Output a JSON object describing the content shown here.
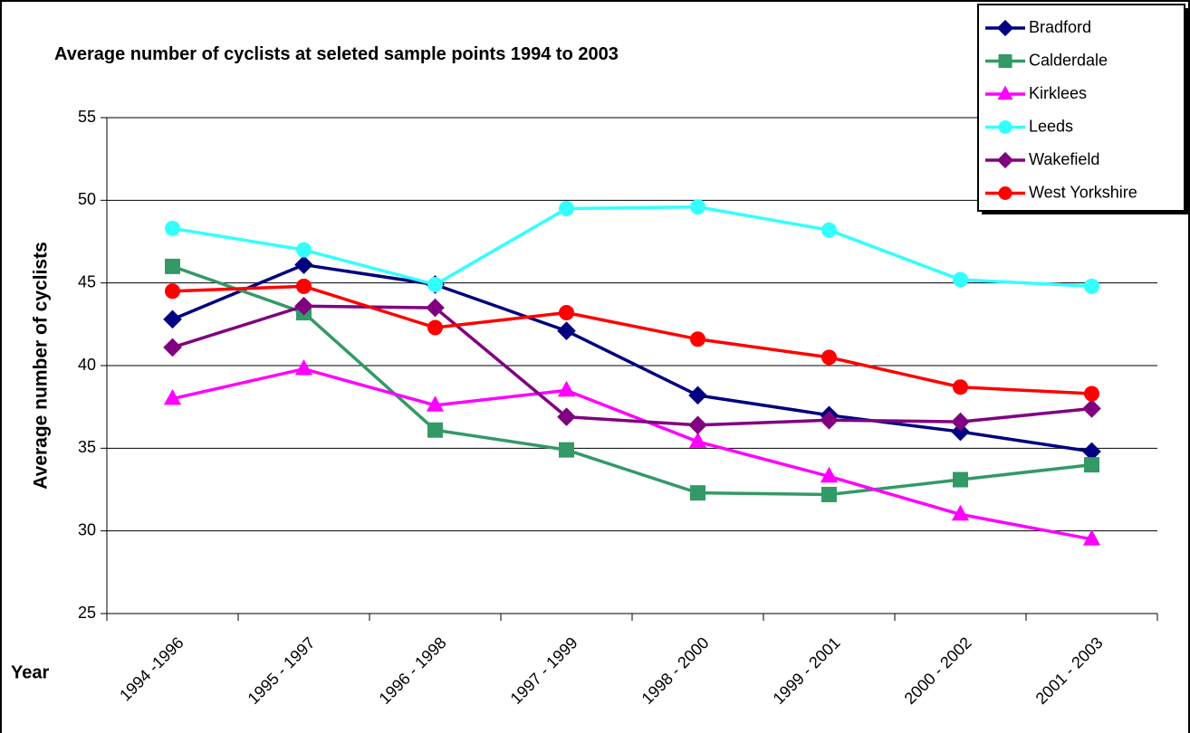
{
  "chart_data": {
    "type": "line",
    "title": "Average number of cyclists at seleted sample points 1994 to 2003",
    "y_label": "Average number of cyclists",
    "x_label": "Year",
    "categories": [
      "1994 -1996",
      "1995 - 1997",
      "1996 - 1998",
      "1997 - 1999",
      "1998 - 2000",
      "1999 - 2001",
      "2000 - 2002",
      "2001 - 2003"
    ],
    "series": [
      {
        "name": "Bradford",
        "color": "#000080",
        "marker": "diamond",
        "values": [
          42.8,
          46.1,
          44.9,
          42.1,
          38.2,
          37.0,
          36.0,
          34.8
        ]
      },
      {
        "name": "Calderdale",
        "color": "#339966",
        "marker": "square",
        "values": [
          46.0,
          43.2,
          36.1,
          34.9,
          32.3,
          32.2,
          33.1,
          34.0
        ]
      },
      {
        "name": "Kirklees",
        "color": "#ff00ff",
        "marker": "triangle",
        "values": [
          38.0,
          39.8,
          37.6,
          38.5,
          35.4,
          33.3,
          31.0,
          29.5
        ]
      },
      {
        "name": "Leeds",
        "color": "#33ffff",
        "marker": "circle",
        "values": [
          48.3,
          47.0,
          44.9,
          49.5,
          49.6,
          48.2,
          45.2,
          44.8
        ]
      },
      {
        "name": "Wakefield",
        "color": "#800080",
        "marker": "diamond",
        "values": [
          41.1,
          43.6,
          43.5,
          36.9,
          36.4,
          36.7,
          36.6,
          37.4
        ]
      },
      {
        "name": "West Yorkshire",
        "color": "#ff0000",
        "marker": "circle",
        "values": [
          44.5,
          44.8,
          42.3,
          43.2,
          41.6,
          40.5,
          38.7,
          38.3
        ]
      }
    ],
    "ylim": [
      25,
      55
    ],
    "yticks": [
      25,
      30,
      35,
      40,
      45,
      50,
      55
    ],
    "grid": true,
    "legend": "top-right"
  }
}
